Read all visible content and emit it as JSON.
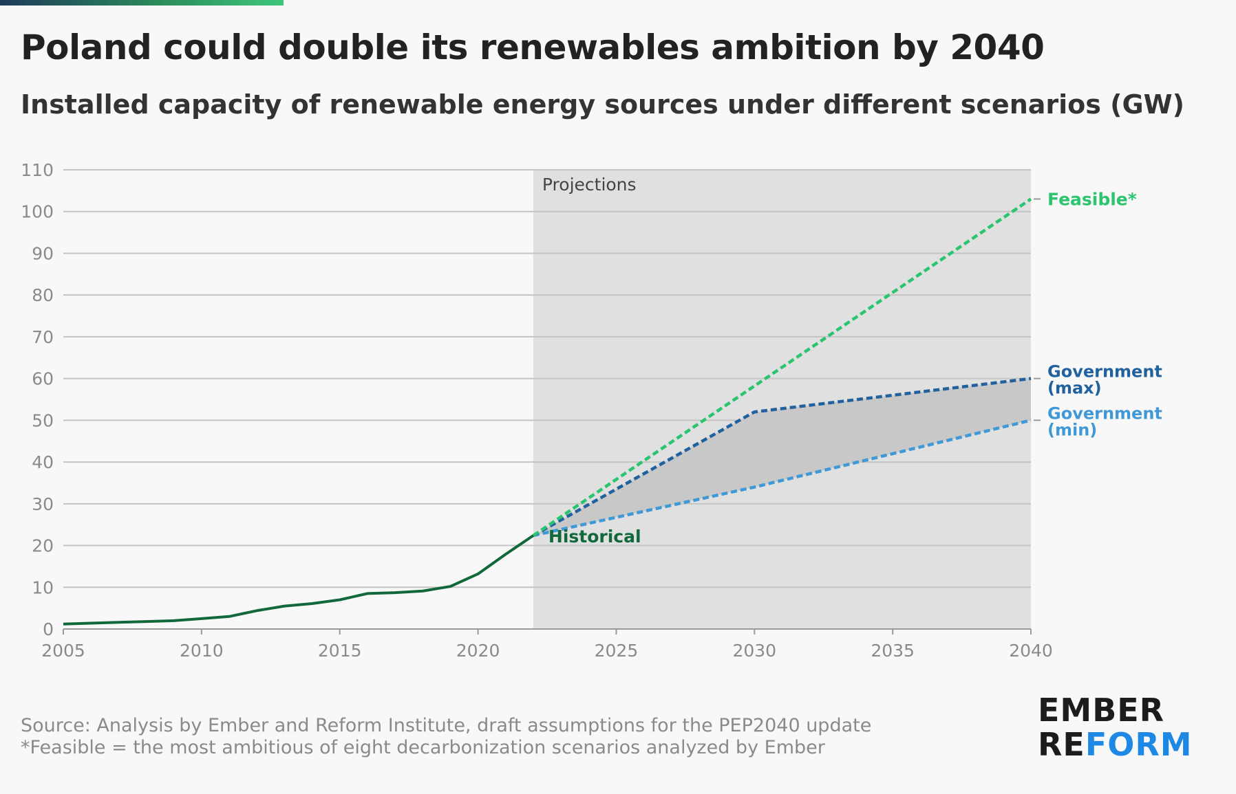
{
  "header": {
    "title": "Poland could double its renewables ambition by 2040",
    "subtitle": "Installed capacity of renewable energy sources under different scenarios (GW)"
  },
  "colors": {
    "historical": "#11683a",
    "feasible": "#2bc46f",
    "gov_max": "#21629e",
    "gov_min": "#3f99d6",
    "projection_band": "#e0e0e0",
    "gov_range_fill": "#c8c8c8",
    "grid": "#c4c4c4",
    "tick_text": "#8a8a8a"
  },
  "chart_data": {
    "type": "line",
    "title": "Poland could double its renewables ambition by 2040",
    "subtitle": "Installed capacity of renewable energy sources under different scenarios (GW)",
    "xlabel": "",
    "ylabel": "",
    "xlim": [
      2005,
      2040
    ],
    "ylim": [
      0,
      110
    ],
    "xticks": [
      2005,
      2010,
      2015,
      2020,
      2025,
      2030,
      2035,
      2040
    ],
    "yticks": [
      0,
      10,
      20,
      30,
      40,
      50,
      60,
      70,
      80,
      90,
      100,
      110
    ],
    "grid": true,
    "projection_region": {
      "from": 2022,
      "to": 2040,
      "label": "Projections"
    },
    "series": [
      {
        "name": "Historical",
        "style": "solid",
        "color": "#11683a",
        "x": [
          2005,
          2006,
          2007,
          2008,
          2009,
          2010,
          2011,
          2012,
          2013,
          2014,
          2015,
          2016,
          2017,
          2018,
          2019,
          2020,
          2021,
          2022
        ],
        "values": [
          1.2,
          1.4,
          1.6,
          1.8,
          2.0,
          2.5,
          3.0,
          4.4,
          5.5,
          6.1,
          7.0,
          8.5,
          8.7,
          9.1,
          10.2,
          13.2,
          17.9,
          22.4
        ]
      },
      {
        "name": "Feasible*",
        "style": "dashed",
        "color": "#2bc46f",
        "x": [
          2022,
          2040
        ],
        "values": [
          22.4,
          103
        ]
      },
      {
        "name": "Government (max)",
        "style": "dashed",
        "color": "#21629e",
        "x": [
          2022,
          2030,
          2040
        ],
        "values": [
          22.4,
          52,
          60
        ]
      },
      {
        "name": "Government (min)",
        "style": "dashed",
        "color": "#3f99d6",
        "x": [
          2022,
          2030,
          2040
        ],
        "values": [
          22.4,
          34,
          50
        ]
      }
    ],
    "labels": {
      "historical": "Historical",
      "feasible": "Feasible*",
      "gov_max": [
        "Government",
        "(max)"
      ],
      "gov_min": [
        "Government",
        "(min)"
      ]
    }
  },
  "footer": {
    "source": "Source: Analysis by Ember and Reform Institute, draft assumptions for the PEP2040 update",
    "note": "*Feasible = the most ambitious of eight decarbonization scenarios analyzed by Ember"
  },
  "logo": {
    "line1": "EMBER",
    "line2_part1": "RE",
    "line2_part2": "FORM"
  }
}
